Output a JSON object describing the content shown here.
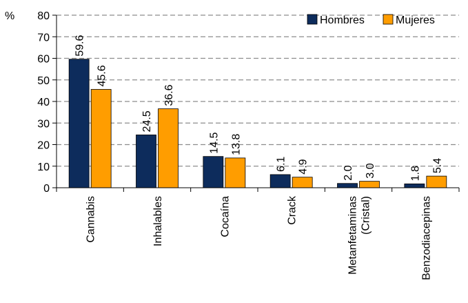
{
  "chart_data": {
    "type": "bar",
    "title": "",
    "xlabel": "",
    "ylabel": "%",
    "ylim": [
      0,
      80
    ],
    "yticks": [
      0,
      10,
      20,
      30,
      40,
      50,
      60,
      70,
      80
    ],
    "grid": "dashed horizontal",
    "legend_position": "top-right",
    "categories": [
      [
        "Cannabis"
      ],
      [
        "Inhalables"
      ],
      [
        "Cocaína"
      ],
      [
        "Crack"
      ],
      [
        "Metanfetaminas",
        "(Cristal)"
      ],
      [
        "Benzodiacepinas"
      ]
    ],
    "series": [
      {
        "name": "Hombres",
        "color": "#0d2c5c",
        "values": [
          59.6,
          24.5,
          14.5,
          6.1,
          2.0,
          1.8
        ],
        "labels": [
          "59.6",
          "24.5",
          "14.5",
          "6.1",
          "2.0",
          "1.8"
        ]
      },
      {
        "name": "Mujeres",
        "color": "#ff9d00",
        "values": [
          45.6,
          36.6,
          13.8,
          4.9,
          3.0,
          5.4
        ],
        "labels": [
          "45.6",
          "36.6",
          "13.8",
          "4.9",
          "3.0",
          "5.4"
        ]
      }
    ]
  }
}
